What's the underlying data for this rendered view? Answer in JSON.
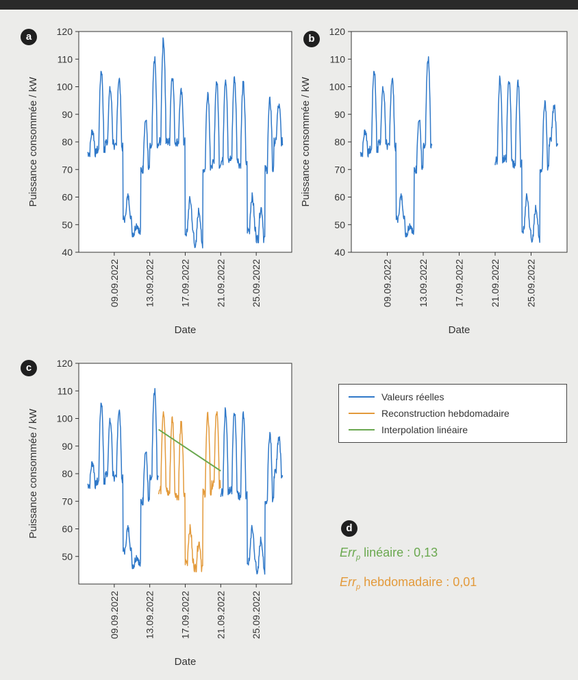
{
  "chart_data": [
    {
      "panel": "a",
      "type": "line",
      "ylabel": "Puissance consommée / kW",
      "xlabel": "Date",
      "ylim": [
        40,
        120
      ],
      "yticks": [
        40,
        50,
        60,
        70,
        80,
        90,
        100,
        110,
        120
      ],
      "xlim": [
        "2022-09-05",
        "2022-09-29"
      ],
      "xticks": [
        "09.09.2022",
        "13.09.2022",
        "17.09.2022",
        "21.09.2022",
        "25.09.2022"
      ],
      "grid": false,
      "series": [
        {
          "color": "#2f78c8",
          "segment": [
            "2022-09-06",
            "2022-09-28"
          ]
        }
      ]
    },
    {
      "panel": "b",
      "type": "line",
      "ylabel": "Puissance consommée / kW",
      "xlabel": "Date",
      "ylim": [
        40,
        120
      ],
      "yticks": [
        40,
        50,
        60,
        70,
        80,
        90,
        100,
        110,
        120
      ],
      "xlim": [
        "2022-09-05",
        "2022-09-29"
      ],
      "xticks": [
        "09.09.2022",
        "13.09.2022",
        "17.09.2022",
        "21.09.2022",
        "25.09.2022"
      ],
      "grid": false,
      "series": [
        {
          "color": "#2f78c8",
          "segments": [
            [
              "2022-09-06",
              "2022-09-14"
            ],
            [
              "2022-09-21",
              "2022-09-28"
            ]
          ]
        }
      ]
    },
    {
      "panel": "c",
      "type": "line",
      "ylabel": "Puissance consommée / kW",
      "xlabel": "Date",
      "ylim": [
        40,
        120
      ],
      "yticks": [
        50,
        60,
        70,
        80,
        90,
        100,
        110,
        120
      ],
      "xlim": [
        "2022-09-05",
        "2022-09-29"
      ],
      "xticks": [
        "09.09.2022",
        "13.09.2022",
        "17.09.2022",
        "21.09.2022",
        "25.09.2022"
      ],
      "grid": false,
      "series": [
        {
          "name": "Valeurs réelles",
          "color": "#2f78c8",
          "segments": [
            [
              "2022-09-06",
              "2022-09-14"
            ],
            [
              "2022-09-21",
              "2022-09-28"
            ]
          ]
        },
        {
          "name": "Reconstruction hebdomadaire",
          "color": "#e39a3b",
          "segment": [
            "2022-09-14",
            "2022-09-21"
          ]
        },
        {
          "name": "Interpolation linéaire",
          "color": "#6aa84f",
          "points": [
            [
              "2022-09-14",
              96
            ],
            [
              "2022-09-21",
              81
            ]
          ]
        }
      ],
      "legend": "right"
    }
  ],
  "daily_load_kw": {
    "dates": [
      "2022-09-06",
      "2022-09-07",
      "2022-09-08",
      "2022-09-09",
      "2022-09-10",
      "2022-09-11",
      "2022-09-12",
      "2022-09-13",
      "2022-09-14",
      "2022-09-15",
      "2022-09-16",
      "2022-09-17",
      "2022-09-18",
      "2022-09-19",
      "2022-09-20",
      "2022-09-21",
      "2022-09-22",
      "2022-09-23",
      "2022-09-24",
      "2022-09-25",
      "2022-09-26",
      "2022-09-27",
      "2022-09-28"
    ],
    "peak": [
      84,
      106,
      99,
      103,
      60,
      50,
      88,
      110,
      117,
      104,
      98,
      59,
      55,
      98,
      102,
      103,
      103,
      101,
      60,
      56,
      95,
      93,
      89
    ],
    "trough": [
      76,
      77,
      80,
      78,
      52,
      47,
      70,
      78,
      80,
      80,
      80,
      47,
      43,
      70,
      72,
      73,
      74,
      72,
      48,
      45,
      70,
      80,
      80
    ]
  },
  "reconstruction_kw": {
    "dates": [
      "2022-09-14",
      "2022-09-15",
      "2022-09-16",
      "2022-09-17",
      "2022-09-18",
      "2022-09-19",
      "2022-09-20"
    ],
    "peak": [
      103,
      100,
      98,
      60,
      55,
      101,
      102
    ],
    "trough": [
      74,
      73,
      72,
      48,
      46,
      73,
      76
    ]
  },
  "panels": {
    "a": "a",
    "b": "b",
    "c": "c",
    "d": "d"
  },
  "legend": {
    "items": [
      {
        "label": "Valeurs réelles",
        "color": "#2f78c8"
      },
      {
        "label": "Reconstruction hebdomadaire",
        "color": "#e39a3b"
      },
      {
        "label": "Interpolation linéaire",
        "color": "#6aa84f"
      }
    ]
  },
  "errors": {
    "lin_prefix": "Err",
    "lin_sub": "p",
    "lin_text": " linéaire : 0,13",
    "lin_color": "#6aa84f",
    "heb_prefix": "Err",
    "heb_sub": "p",
    "heb_text": " hebdomadaire : 0,01",
    "heb_color": "#e39a3b"
  }
}
